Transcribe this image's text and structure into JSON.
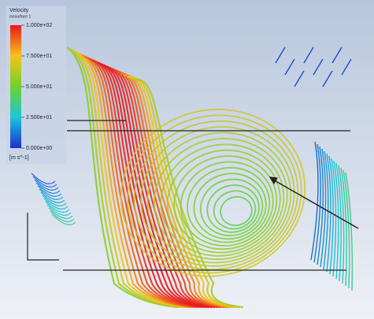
{
  "legend": {
    "title": "Velocity",
    "subtitle": "Isosurface 1",
    "ticks": [
      {
        "value": 100,
        "label": "1.000e+02"
      },
      {
        "value": 75,
        "label": "7.500e+01"
      },
      {
        "value": 50,
        "label": "5.000e+01"
      },
      {
        "value": 25,
        "label": "2.500e+01"
      },
      {
        "value": 0,
        "label": "0.000e+00"
      }
    ],
    "unit": "[m s^-1]"
  }
}
